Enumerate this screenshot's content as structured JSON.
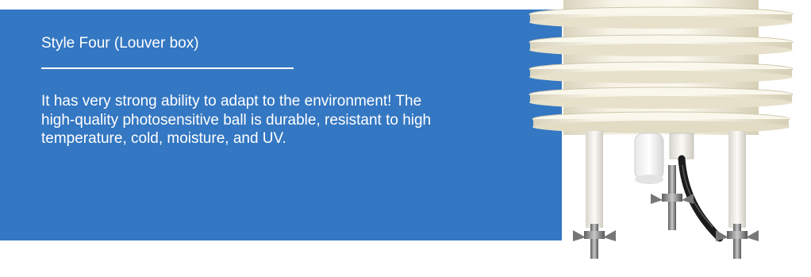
{
  "section": {
    "title": "Style Four (Louver box)",
    "description": "It has very strong ability to adapt to the environment! The high-quality photosensitive ball is durable, resistant to high temperature, cold, moisture, and UV."
  },
  "colors": {
    "panel_background": "#3477c2",
    "text": "#ffffff",
    "louver_body": "#f2eee0"
  }
}
